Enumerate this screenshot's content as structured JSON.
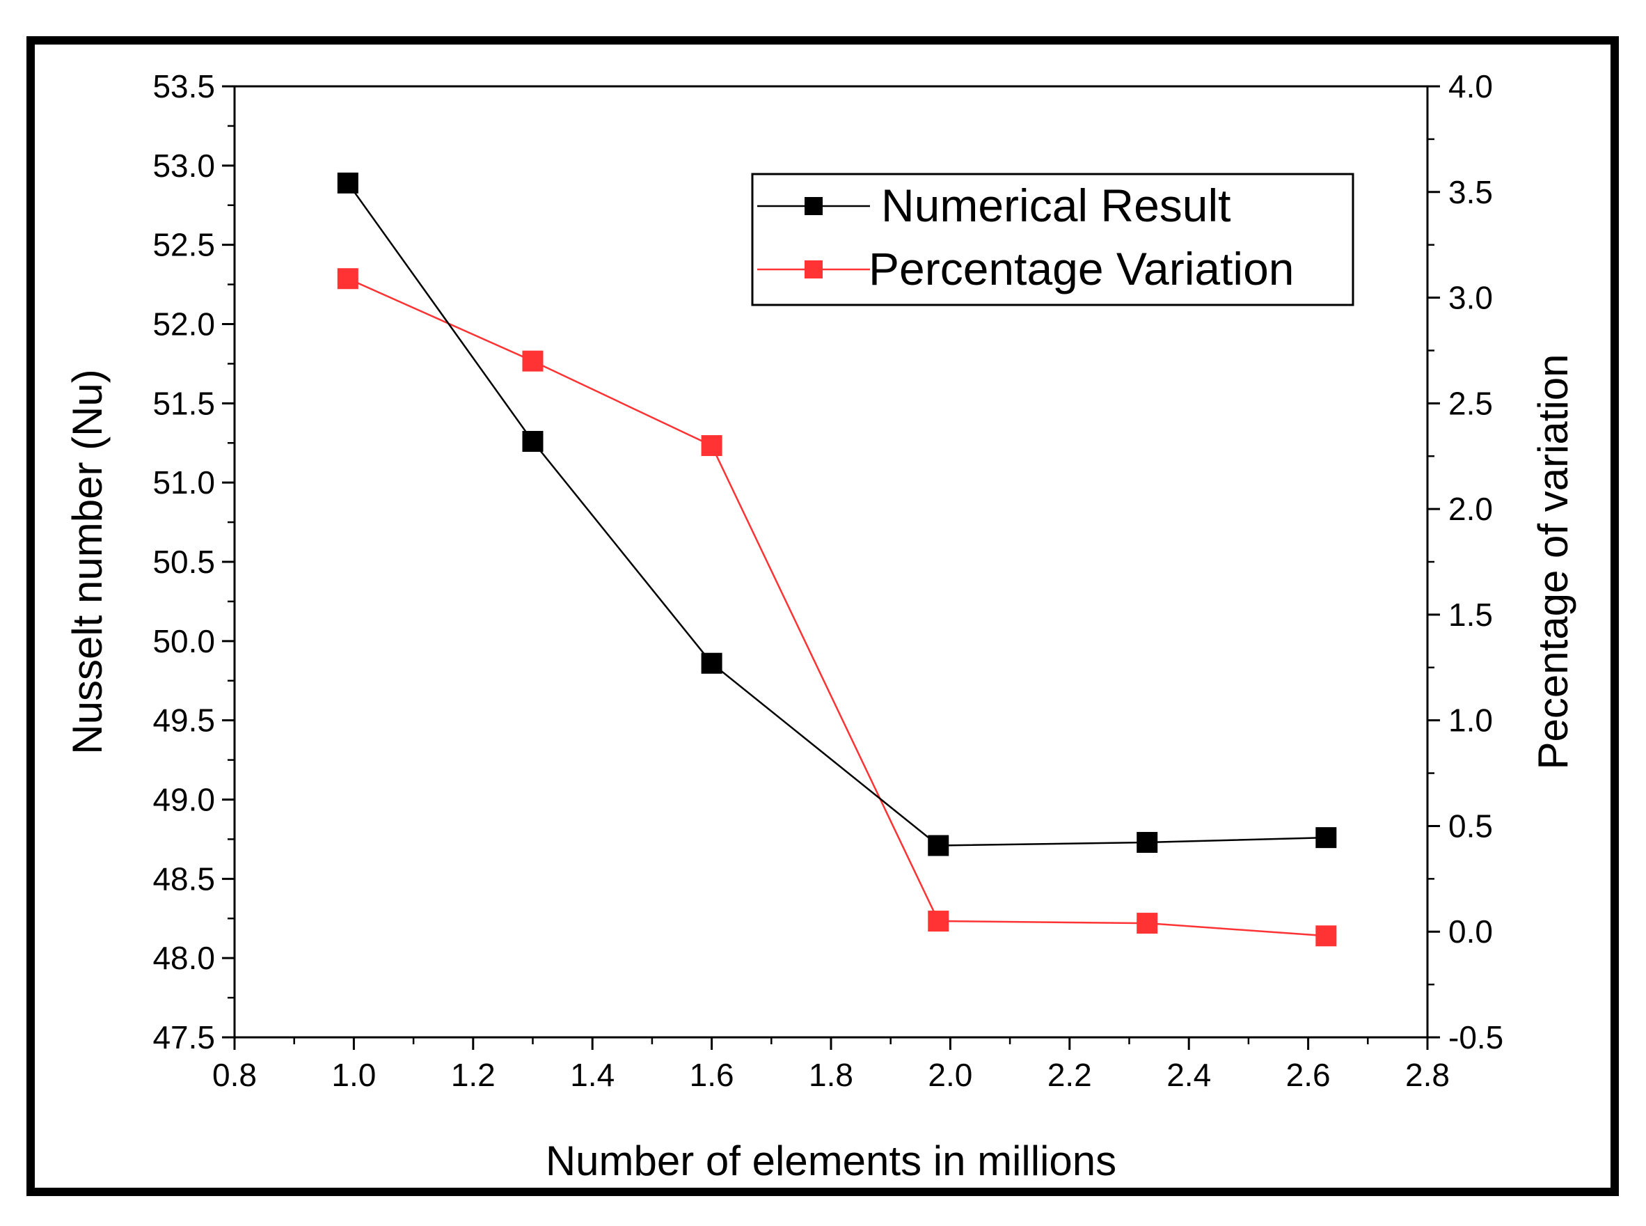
{
  "chart_data": {
    "type": "line",
    "xlabel": "Number of elements in millions",
    "ylabel_left": "Nusselt number (Nu)",
    "ylabel_right": "Pecentage of variation",
    "xlim": [
      0.8,
      2.8
    ],
    "ylim_left": [
      47.5,
      53.5
    ],
    "ylim_right": [
      -0.5,
      4.0
    ],
    "x_ticks": [
      "0.8",
      "1.0",
      "1.2",
      "1.4",
      "1.6",
      "1.8",
      "2.0",
      "2.2",
      "2.4",
      "2.6",
      "2.8"
    ],
    "y_left_ticks": [
      "47.5",
      "48.0",
      "48.5",
      "49.0",
      "49.5",
      "50.0",
      "50.5",
      "51.0",
      "51.5",
      "52.0",
      "52.5",
      "53.0",
      "53.5"
    ],
    "y_right_ticks": [
      "-0.5",
      "0.0",
      "0.5",
      "1.0",
      "1.5",
      "2.0",
      "2.5",
      "3.0",
      "3.5",
      "4.0"
    ],
    "grid": false,
    "legend_position": "top-right",
    "series": [
      {
        "name": "Numerical Result",
        "axis": "left",
        "color": "#000000",
        "x": [
          0.99,
          1.3,
          1.6,
          1.98,
          2.33,
          2.63
        ],
        "y": [
          52.89,
          51.26,
          49.86,
          48.71,
          48.73,
          48.76
        ]
      },
      {
        "name": "Percentage Variation",
        "axis": "right",
        "color": "#ff3333",
        "x": [
          0.99,
          1.3,
          1.6,
          1.98,
          2.33,
          2.63
        ],
        "y": [
          3.09,
          2.7,
          2.3,
          0.05,
          0.04,
          -0.02
        ]
      }
    ]
  }
}
